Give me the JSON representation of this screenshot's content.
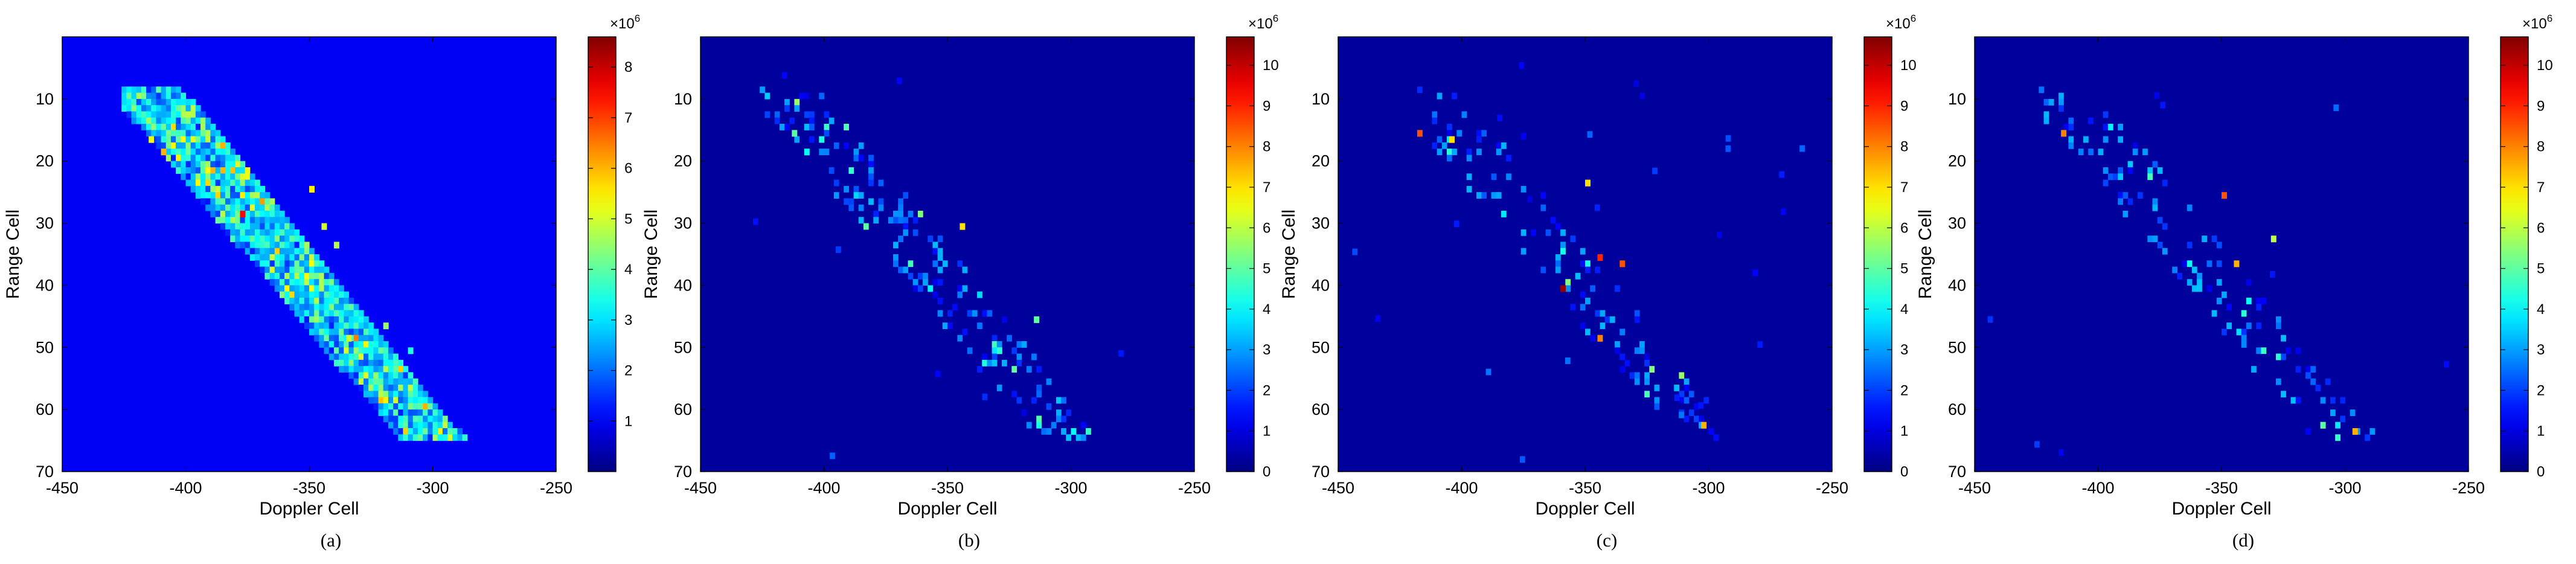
{
  "figure": {
    "panels": [
      {
        "caption": "(a)"
      },
      {
        "caption": "(b)"
      },
      {
        "caption": "(c)"
      },
      {
        "caption": "(d)"
      }
    ]
  },
  "chart_data": [
    {
      "type": "heatmap",
      "panel": "(a)",
      "title": "",
      "xlabel": "Doppler Cell",
      "ylabel": "Range Cell",
      "xlim": [
        -450,
        -250
      ],
      "ylim": [
        70,
        0
      ],
      "xticks": [
        -450,
        -400,
        -350,
        -300,
        -250
      ],
      "yticks": [
        10,
        20,
        30,
        40,
        50,
        60,
        70
      ],
      "colorbar": {
        "min": 0,
        "max": 8.6,
        "ticks": [
          1,
          2,
          3,
          4,
          5,
          6,
          7,
          8
        ],
        "multiplier": "×10^6",
        "colormap": "jet"
      },
      "background_level": 1.0,
      "grid": false,
      "description_points": [
        {
          "x": -415,
          "y": 16,
          "v": 5.2
        },
        {
          "x": -410,
          "y": 18,
          "v": 6.0
        },
        {
          "x": -378,
          "y": 28,
          "v": 7.5
        },
        {
          "x": -350,
          "y": 24,
          "v": 5.5
        },
        {
          "x": -345,
          "y": 30,
          "v": 5.0
        },
        {
          "x": -340,
          "y": 33,
          "v": 4.8
        },
        {
          "x": -335,
          "y": 48,
          "v": 5.0
        },
        {
          "x": -320,
          "y": 46,
          "v": 4.5
        },
        {
          "x": -310,
          "y": 50,
          "v": 3.5
        },
        {
          "x": -300,
          "y": 63,
          "v": 3.5
        }
      ]
    },
    {
      "type": "heatmap",
      "panel": "(b)",
      "title": "",
      "xlabel": "Doppler Cell",
      "ylabel": "Range Cell",
      "xlim": [
        -450,
        -250
      ],
      "ylim": [
        70,
        0
      ],
      "xticks": [
        -450,
        -400,
        -350,
        -300,
        -250
      ],
      "yticks": [
        10,
        20,
        30,
        40,
        50,
        60,
        70
      ],
      "colorbar": {
        "min": 0,
        "max": 10.7,
        "ticks": [
          0,
          1,
          2,
          3,
          4,
          5,
          6,
          7,
          8,
          9,
          10
        ],
        "multiplier": "×10^6",
        "colormap": "jet"
      },
      "background_level": 0.3,
      "grid": false,
      "description_points": [
        {
          "x": -413,
          "y": 15,
          "v": 5.0
        },
        {
          "x": -408,
          "y": 18,
          "v": 4.0
        },
        {
          "x": -345,
          "y": 30,
          "v": 7.0
        },
        {
          "x": -315,
          "y": 45,
          "v": 5.0
        },
        {
          "x": -330,
          "y": 50,
          "v": 4.5
        },
        {
          "x": -300,
          "y": 63,
          "v": 4.0
        }
      ]
    },
    {
      "type": "heatmap",
      "panel": "(c)",
      "title": "",
      "xlabel": "Doppler Cell",
      "ylabel": "Range Cell",
      "xlim": [
        -450,
        -250
      ],
      "ylim": [
        70,
        0
      ],
      "xticks": [
        -450,
        -400,
        -350,
        -300,
        -250
      ],
      "yticks": [
        10,
        20,
        30,
        40,
        50,
        60,
        70
      ],
      "colorbar": {
        "min": 0,
        "max": 10.7,
        "ticks": [
          0,
          1,
          2,
          3,
          4,
          5,
          6,
          7,
          8,
          9,
          10
        ],
        "multiplier": "×10^6",
        "colormap": "jet"
      },
      "background_level": 0.3,
      "grid": false,
      "description_points": [
        {
          "x": -418,
          "y": 15,
          "v": 8.5
        },
        {
          "x": -405,
          "y": 16,
          "v": 7.0
        },
        {
          "x": -360,
          "y": 40,
          "v": 10.5
        },
        {
          "x": -345,
          "y": 35,
          "v": 9.0
        },
        {
          "x": -336,
          "y": 36,
          "v": 8.5
        },
        {
          "x": -350,
          "y": 23,
          "v": 7.0
        },
        {
          "x": -345,
          "y": 48,
          "v": 8.0
        },
        {
          "x": -303,
          "y": 62,
          "v": 7.5
        }
      ]
    },
    {
      "type": "heatmap",
      "panel": "(d)",
      "title": "",
      "xlabel": "Doppler Cell",
      "ylabel": "Range Cell",
      "xlim": [
        -450,
        -250
      ],
      "ylim": [
        70,
        0
      ],
      "xticks": [
        -450,
        -400,
        -350,
        -300,
        -250
      ],
      "yticks": [
        10,
        20,
        30,
        40,
        50,
        60,
        70
      ],
      "colorbar": {
        "min": 0,
        "max": 10.7,
        "ticks": [
          0,
          1,
          2,
          3,
          4,
          5,
          6,
          7,
          8,
          9,
          10
        ],
        "multiplier": "×10^6",
        "colormap": "jet"
      },
      "background_level": 0.3,
      "grid": false,
      "description_points": [
        {
          "x": -415,
          "y": 15,
          "v": 8.0
        },
        {
          "x": -350,
          "y": 25,
          "v": 8.5
        },
        {
          "x": -345,
          "y": 36,
          "v": 7.5
        },
        {
          "x": -330,
          "y": 32,
          "v": 6.0
        },
        {
          "x": -310,
          "y": 62,
          "v": 5.0
        },
        {
          "x": -297,
          "y": 63,
          "v": 7.5
        }
      ]
    }
  ]
}
